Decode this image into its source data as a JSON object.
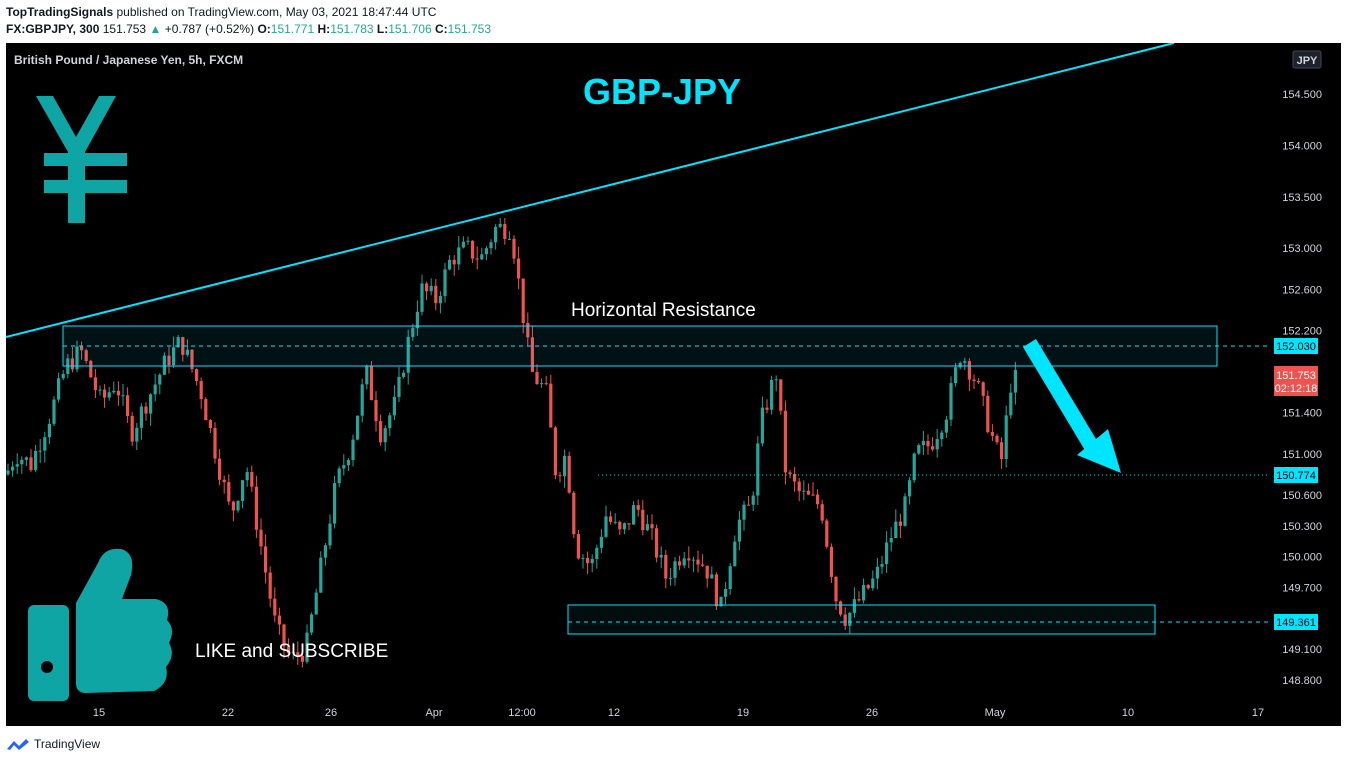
{
  "header": {
    "publisher": "TopTradingSignals",
    "published_text": "published on TradingView.com, May 03, 2021 18:47:44 UTC",
    "symbol": "FX:GBPJPY, 300",
    "last": "151.753",
    "change_arrow": "▲",
    "change": "+0.787 (+0.52%)",
    "o_label": "O:",
    "o_value": "151.771",
    "h_label": "H:",
    "h_value": "151.783",
    "l_label": "L:",
    "l_value": "151.706",
    "c_label": "C:",
    "c_value": "151.753"
  },
  "legend": {
    "series_title": "British Pound / Japanese Yen, 5h, FXCM"
  },
  "currency_badge": "JPY",
  "annotations": {
    "title": "GBP-JPY",
    "resistance_label": "Horizontal Resistance",
    "cta": "LIKE and SUBSCRIBE",
    "yen_icon": "yen-sign-icon",
    "thumbs_icon": "thumbs-up-icon",
    "arrow_icon": "down-arrow-icon"
  },
  "price_tags": {
    "resistance": "152.030",
    "current": "151.753",
    "countdown": "02:12:18",
    "target": "150.774",
    "support": "149.361"
  },
  "footer": {
    "brand": "TradingView",
    "logo_icon": "tradingview-logo-icon"
  },
  "colors": {
    "background": "#000000",
    "up": "#26a69a",
    "down": "#ef5350",
    "annotation": "#00e5ff",
    "current_tag": "#ef5350",
    "tag_fill": "#00e5ff"
  },
  "chart_data": {
    "type": "candlestick",
    "title": "British Pound / Japanese Yen, 5h, FXCM",
    "xlabel": "",
    "ylabel": "",
    "ylim": [
      148.6,
      155.1
    ],
    "grid": false,
    "y_ticks": [
      "154.500",
      "154.000",
      "153.500",
      "153.000",
      "152.600",
      "152.200",
      "151.400",
      "151.000",
      "150.600",
      "150.300",
      "150.000",
      "149.700",
      "149.100",
      "148.800"
    ],
    "x_ticks": [
      "15",
      "22",
      "26",
      "Apr",
      "12:00",
      "12",
      "19",
      "26",
      "May",
      "10",
      "17"
    ],
    "close_path": [
      {
        "t": 0,
        "p": 150.8
      },
      {
        "t": 10,
        "p": 151.0
      },
      {
        "t": 25,
        "p": 150.9
      },
      {
        "t": 45,
        "p": 151.4
      },
      {
        "t": 60,
        "p": 151.85
      },
      {
        "t": 75,
        "p": 152.0
      },
      {
        "t": 95,
        "p": 151.5
      },
      {
        "t": 110,
        "p": 151.7
      },
      {
        "t": 125,
        "p": 151.2
      },
      {
        "t": 140,
        "p": 151.5
      },
      {
        "t": 160,
        "p": 151.9
      },
      {
        "t": 175,
        "p": 152.1
      },
      {
        "t": 195,
        "p": 151.6
      },
      {
        "t": 210,
        "p": 151.0
      },
      {
        "t": 225,
        "p": 150.4
      },
      {
        "t": 240,
        "p": 150.9
      },
      {
        "t": 255,
        "p": 150.1
      },
      {
        "t": 270,
        "p": 149.3
      },
      {
        "t": 285,
        "p": 149.0
      },
      {
        "t": 300,
        "p": 149.1
      },
      {
        "t": 315,
        "p": 149.9
      },
      {
        "t": 330,
        "p": 150.7
      },
      {
        "t": 345,
        "p": 151.1
      },
      {
        "t": 360,
        "p": 151.8
      },
      {
        "t": 375,
        "p": 151.2
      },
      {
        "t": 390,
        "p": 151.5
      },
      {
        "t": 400,
        "p": 152.0
      },
      {
        "t": 415,
        "p": 152.6
      },
      {
        "t": 430,
        "p": 152.5
      },
      {
        "t": 445,
        "p": 152.9
      },
      {
        "t": 460,
        "p": 153.0
      },
      {
        "t": 475,
        "p": 152.9
      },
      {
        "t": 490,
        "p": 153.2
      },
      {
        "t": 505,
        "p": 153.2
      },
      {
        "t": 515,
        "p": 152.5
      },
      {
        "t": 525,
        "p": 151.8
      },
      {
        "t": 540,
        "p": 151.6
      },
      {
        "t": 550,
        "p": 150.8
      },
      {
        "t": 560,
        "p": 151.0
      },
      {
        "t": 570,
        "p": 150.1
      },
      {
        "t": 585,
        "p": 149.9
      },
      {
        "t": 600,
        "p": 150.4
      },
      {
        "t": 615,
        "p": 150.2
      },
      {
        "t": 630,
        "p": 150.5
      },
      {
        "t": 645,
        "p": 150.2
      },
      {
        "t": 660,
        "p": 149.8
      },
      {
        "t": 680,
        "p": 150.1
      },
      {
        "t": 700,
        "p": 149.9
      },
      {
        "t": 715,
        "p": 149.5
      },
      {
        "t": 730,
        "p": 150.3
      },
      {
        "t": 745,
        "p": 150.5
      },
      {
        "t": 755,
        "p": 151.3
      },
      {
        "t": 770,
        "p": 151.8
      },
      {
        "t": 780,
        "p": 150.8
      },
      {
        "t": 795,
        "p": 150.6
      },
      {
        "t": 815,
        "p": 150.5
      },
      {
        "t": 830,
        "p": 149.6
      },
      {
        "t": 840,
        "p": 149.4
      },
      {
        "t": 855,
        "p": 149.6
      },
      {
        "t": 870,
        "p": 149.8
      },
      {
        "t": 885,
        "p": 150.2
      },
      {
        "t": 900,
        "p": 150.5
      },
      {
        "t": 910,
        "p": 151.0
      },
      {
        "t": 925,
        "p": 151.1
      },
      {
        "t": 940,
        "p": 151.4
      },
      {
        "t": 955,
        "p": 152.0
      },
      {
        "t": 970,
        "p": 151.7
      },
      {
        "t": 985,
        "p": 151.2
      },
      {
        "t": 995,
        "p": 150.9
      },
      {
        "t": 1005,
        "p": 151.7
      },
      {
        "t": 1015,
        "p": 151.75
      }
    ]
  }
}
